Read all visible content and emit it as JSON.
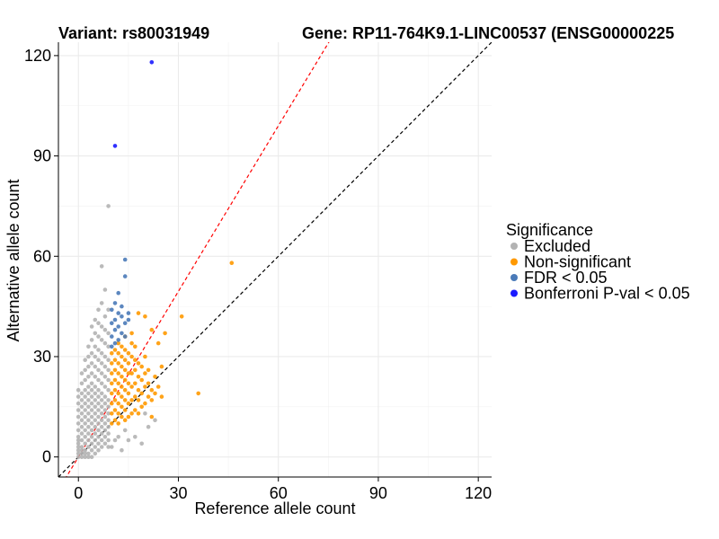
{
  "chart_data": {
    "type": "scatter",
    "title_left": "Variant: rs80031949",
    "title_right": "Gene: RP11-764K9.1-LINC00537 (ENSG00000225",
    "xlabel": "Reference allele count",
    "ylabel": "Alternative allele count",
    "xlim": [
      -6,
      124
    ],
    "ylim": [
      -6,
      124
    ],
    "xticks": [
      0,
      30,
      60,
      90,
      120
    ],
    "yticks": [
      0,
      30,
      60,
      90,
      120
    ],
    "grid": true,
    "reference_lines": [
      {
        "name": "identity",
        "slope": 1,
        "intercept": 0,
        "color": "#000000",
        "dash": true
      },
      {
        "name": "threshold",
        "slope": 1.65,
        "intercept": 0,
        "color": "#ff0000",
        "dash": true
      }
    ],
    "legend": {
      "title": "Significance",
      "position": "right",
      "entries": [
        {
          "label": "Excluded",
          "color": "#b3b3b3"
        },
        {
          "label": "Non-significant",
          "color": "#ff9900"
        },
        {
          "label": "FDR < 0.05",
          "color": "#4a7ab8"
        },
        {
          "label": "Bonferroni P-val < 0.05",
          "color": "#1a1aff"
        }
      ]
    },
    "series": [
      {
        "name": "Excluded",
        "color": "#b3b3b3",
        "points": [
          [
            0,
            0
          ],
          [
            0,
            1
          ],
          [
            0,
            2
          ],
          [
            0,
            3
          ],
          [
            0,
            4
          ],
          [
            0,
            5
          ],
          [
            0,
            6
          ],
          [
            0,
            8
          ],
          [
            0,
            10
          ],
          [
            0,
            12
          ],
          [
            0,
            14
          ],
          [
            0,
            16
          ],
          [
            0,
            18
          ],
          [
            0,
            20
          ],
          [
            1,
            0
          ],
          [
            1,
            1
          ],
          [
            1,
            2
          ],
          [
            1,
            3
          ],
          [
            1,
            5
          ],
          [
            1,
            7
          ],
          [
            1,
            9
          ],
          [
            1,
            11
          ],
          [
            1,
            13
          ],
          [
            1,
            15
          ],
          [
            1,
            17
          ],
          [
            1,
            19
          ],
          [
            1,
            22
          ],
          [
            1,
            25
          ],
          [
            2,
            0
          ],
          [
            2,
            1
          ],
          [
            2,
            2
          ],
          [
            2,
            4
          ],
          [
            2,
            6
          ],
          [
            2,
            8
          ],
          [
            2,
            10
          ],
          [
            2,
            12
          ],
          [
            2,
            14
          ],
          [
            2,
            16
          ],
          [
            2,
            18
          ],
          [
            2,
            20
          ],
          [
            2,
            23
          ],
          [
            2,
            26
          ],
          [
            2,
            29
          ],
          [
            3,
            0
          ],
          [
            3,
            1
          ],
          [
            3,
            3
          ],
          [
            3,
            5
          ],
          [
            3,
            7
          ],
          [
            3,
            9
          ],
          [
            3,
            11
          ],
          [
            3,
            13
          ],
          [
            3,
            15
          ],
          [
            3,
            17
          ],
          [
            3,
            19
          ],
          [
            3,
            21
          ],
          [
            3,
            24
          ],
          [
            3,
            27
          ],
          [
            3,
            30
          ],
          [
            3,
            33
          ],
          [
            4,
            0
          ],
          [
            4,
            2
          ],
          [
            4,
            4
          ],
          [
            4,
            6
          ],
          [
            4,
            8
          ],
          [
            4,
            10
          ],
          [
            4,
            12
          ],
          [
            4,
            14
          ],
          [
            4,
            16
          ],
          [
            4,
            18
          ],
          [
            4,
            20
          ],
          [
            4,
            22
          ],
          [
            4,
            25
          ],
          [
            4,
            28
          ],
          [
            4,
            31
          ],
          [
            4,
            35
          ],
          [
            4,
            39
          ],
          [
            5,
            1
          ],
          [
            5,
            3
          ],
          [
            5,
            5
          ],
          [
            5,
            7
          ],
          [
            5,
            9
          ],
          [
            5,
            11
          ],
          [
            5,
            13
          ],
          [
            5,
            15
          ],
          [
            5,
            17
          ],
          [
            5,
            19
          ],
          [
            5,
            21
          ],
          [
            5,
            24
          ],
          [
            5,
            27
          ],
          [
            5,
            30
          ],
          [
            5,
            33
          ],
          [
            5,
            37
          ],
          [
            5,
            41
          ],
          [
            6,
            2
          ],
          [
            6,
            4
          ],
          [
            6,
            6
          ],
          [
            6,
            8
          ],
          [
            6,
            10
          ],
          [
            6,
            12
          ],
          [
            6,
            14
          ],
          [
            6,
            16
          ],
          [
            6,
            18
          ],
          [
            6,
            20
          ],
          [
            6,
            23
          ],
          [
            6,
            26
          ],
          [
            6,
            29
          ],
          [
            6,
            32
          ],
          [
            6,
            36
          ],
          [
            6,
            40
          ],
          [
            6,
            44
          ],
          [
            7,
            3
          ],
          [
            7,
            5
          ],
          [
            7,
            7
          ],
          [
            7,
            9
          ],
          [
            7,
            11
          ],
          [
            7,
            13
          ],
          [
            7,
            15
          ],
          [
            7,
            17
          ],
          [
            7,
            19
          ],
          [
            7,
            22
          ],
          [
            7,
            25
          ],
          [
            7,
            28
          ],
          [
            7,
            31
          ],
          [
            7,
            35
          ],
          [
            7,
            39
          ],
          [
            7,
            46
          ],
          [
            8,
            4
          ],
          [
            8,
            6
          ],
          [
            8,
            8
          ],
          [
            8,
            10
          ],
          [
            8,
            12
          ],
          [
            8,
            14
          ],
          [
            8,
            16
          ],
          [
            8,
            18
          ],
          [
            8,
            21
          ],
          [
            8,
            24
          ],
          [
            8,
            27
          ],
          [
            8,
            30
          ],
          [
            8,
            34
          ],
          [
            8,
            38
          ],
          [
            8,
            42
          ],
          [
            8,
            50
          ],
          [
            9,
            3
          ],
          [
            9,
            5
          ],
          [
            9,
            7
          ],
          [
            9,
            9
          ],
          [
            9,
            11
          ],
          [
            9,
            13
          ],
          [
            9,
            15
          ],
          [
            9,
            17
          ],
          [
            9,
            20
          ],
          [
            9,
            23
          ],
          [
            9,
            26
          ],
          [
            9,
            29
          ],
          [
            9,
            33
          ],
          [
            9,
            37
          ],
          [
            9,
            44
          ],
          [
            7,
            57
          ],
          [
            9,
            75
          ],
          [
            10,
            3
          ],
          [
            11,
            5
          ],
          [
            12,
            6
          ],
          [
            13,
            2
          ],
          [
            14,
            8
          ],
          [
            15,
            5
          ],
          [
            17,
            6
          ],
          [
            19,
            4
          ],
          [
            21,
            9
          ],
          [
            20,
            13
          ],
          [
            23,
            11
          ]
        ]
      },
      {
        "name": "Non-significant",
        "color": "#ff9900",
        "points": [
          [
            10,
            10
          ],
          [
            10,
            13
          ],
          [
            10,
            16
          ],
          [
            10,
            19
          ],
          [
            10,
            22
          ],
          [
            10,
            25
          ],
          [
            10,
            28
          ],
          [
            10,
            31
          ],
          [
            11,
            11
          ],
          [
            11,
            14
          ],
          [
            11,
            17
          ],
          [
            11,
            20
          ],
          [
            11,
            23
          ],
          [
            11,
            26
          ],
          [
            11,
            29
          ],
          [
            11,
            32
          ],
          [
            12,
            10
          ],
          [
            12,
            13
          ],
          [
            12,
            16
          ],
          [
            12,
            19
          ],
          [
            12,
            22
          ],
          [
            12,
            25
          ],
          [
            12,
            28
          ],
          [
            12,
            31
          ],
          [
            12,
            34
          ],
          [
            13,
            12
          ],
          [
            13,
            15
          ],
          [
            13,
            18
          ],
          [
            13,
            21
          ],
          [
            13,
            24
          ],
          [
            13,
            27
          ],
          [
            13,
            30
          ],
          [
            13,
            33
          ],
          [
            14,
            11
          ],
          [
            14,
            14
          ],
          [
            14,
            17
          ],
          [
            14,
            20
          ],
          [
            14,
            23
          ],
          [
            14,
            26
          ],
          [
            14,
            29
          ],
          [
            14,
            32
          ],
          [
            14,
            36
          ],
          [
            15,
            12
          ],
          [
            15,
            16
          ],
          [
            15,
            19
          ],
          [
            15,
            22
          ],
          [
            15,
            25
          ],
          [
            15,
            28
          ],
          [
            15,
            31
          ],
          [
            16,
            13
          ],
          [
            16,
            17
          ],
          [
            16,
            21
          ],
          [
            16,
            25
          ],
          [
            16,
            30
          ],
          [
            16,
            34
          ],
          [
            16,
            37
          ],
          [
            17,
            14
          ],
          [
            17,
            18
          ],
          [
            17,
            22
          ],
          [
            17,
            26
          ],
          [
            17,
            29
          ],
          [
            17,
            33
          ],
          [
            18,
            13
          ],
          [
            18,
            17
          ],
          [
            18,
            20
          ],
          [
            18,
            24
          ],
          [
            18,
            28
          ],
          [
            18,
            43
          ],
          [
            19,
            15
          ],
          [
            19,
            19
          ],
          [
            19,
            23
          ],
          [
            19,
            27
          ],
          [
            20,
            16
          ],
          [
            20,
            21
          ],
          [
            20,
            25
          ],
          [
            20,
            30
          ],
          [
            20,
            42
          ],
          [
            21,
            18
          ],
          [
            21,
            22
          ],
          [
            21,
            26
          ],
          [
            22,
            12
          ],
          [
            22,
            17
          ],
          [
            22,
            20
          ],
          [
            22,
            38
          ],
          [
            23,
            19
          ],
          [
            23,
            24
          ],
          [
            24,
            21
          ],
          [
            24,
            34
          ],
          [
            25,
            18
          ],
          [
            25,
            27
          ],
          [
            26,
            37
          ],
          [
            31,
            42
          ],
          [
            36,
            19
          ],
          [
            46,
            58
          ]
        ]
      },
      {
        "name": "FDR < 0.05",
        "color": "#4a7ab8",
        "points": [
          [
            10,
            33
          ],
          [
            10,
            36
          ],
          [
            10,
            40
          ],
          [
            10,
            44
          ],
          [
            11,
            34
          ],
          [
            11,
            38
          ],
          [
            11,
            41
          ],
          [
            11,
            46
          ],
          [
            12,
            35
          ],
          [
            12,
            39
          ],
          [
            12,
            43
          ],
          [
            12,
            49
          ],
          [
            13,
            37
          ],
          [
            13,
            42
          ],
          [
            13,
            45
          ],
          [
            14,
            36
          ],
          [
            14,
            40
          ],
          [
            14,
            54
          ],
          [
            14,
            59
          ],
          [
            15,
            41
          ],
          [
            15,
            43
          ]
        ]
      },
      {
        "name": "Bonferroni P-val < 0.05",
        "color": "#1a1aff",
        "points": [
          [
            11,
            93
          ],
          [
            22,
            118
          ]
        ]
      }
    ]
  }
}
